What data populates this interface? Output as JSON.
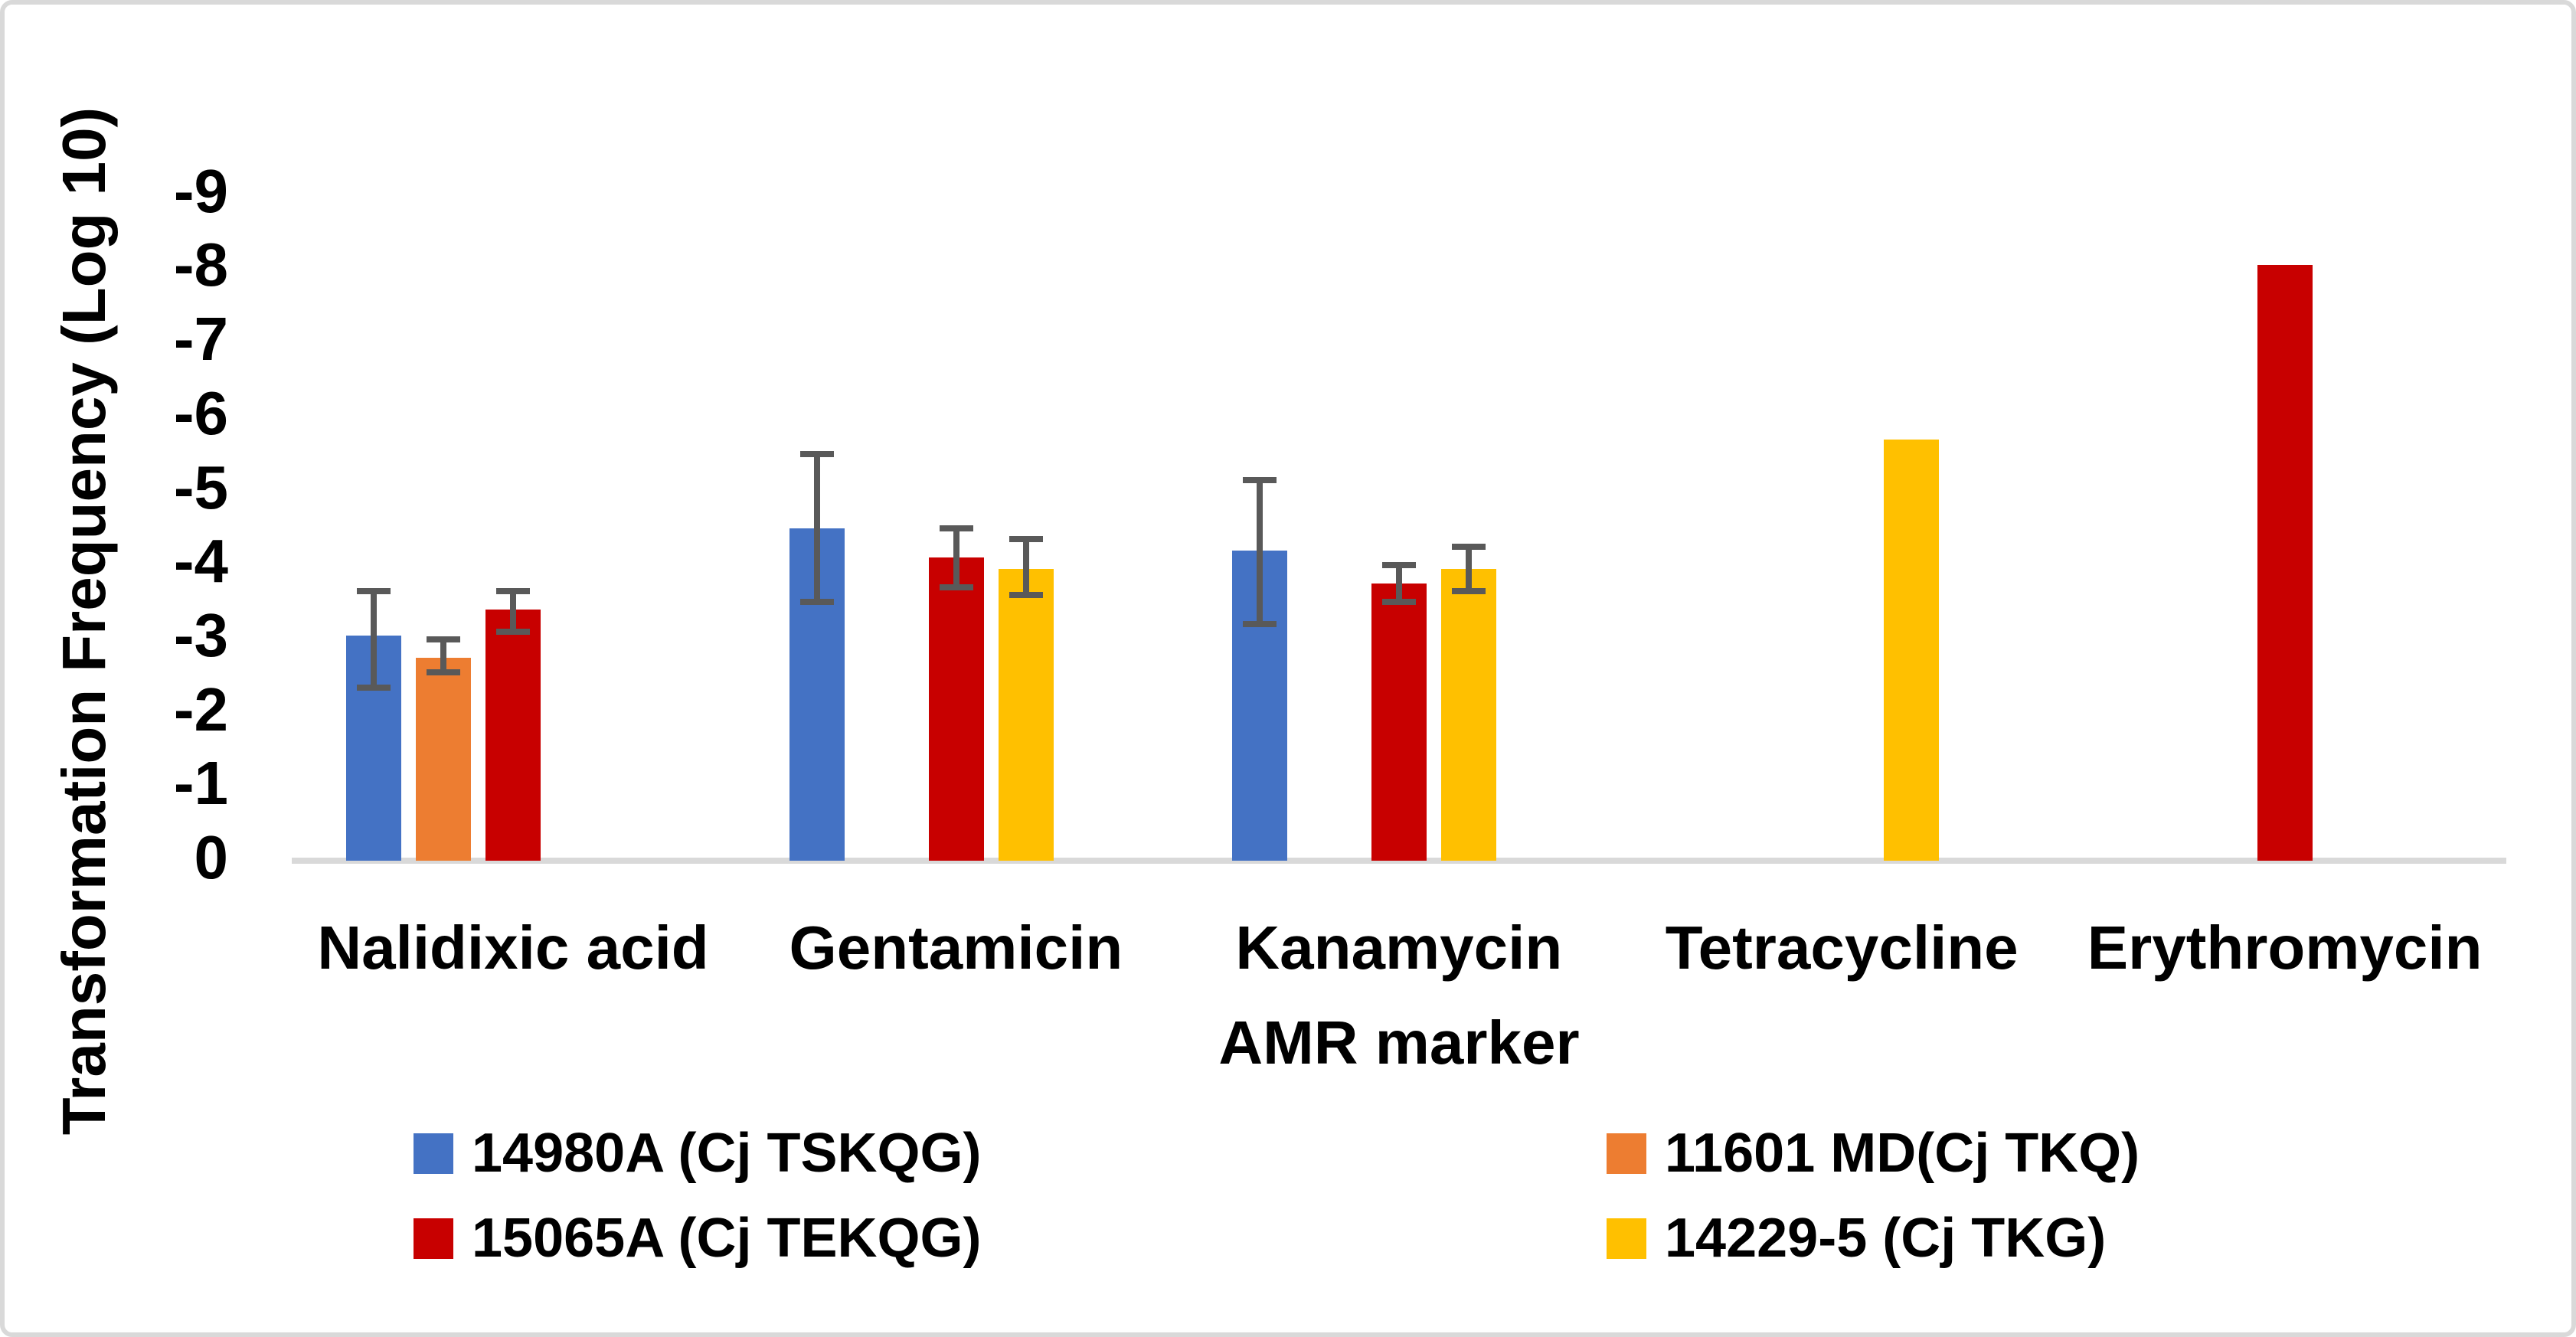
{
  "chart_data": {
    "type": "bar",
    "ylabel": "Transformation Frequency (Log 10)",
    "xlabel": "AMR marker",
    "yticks": [
      0,
      -1,
      -2,
      -3,
      -4,
      -5,
      -6,
      -7,
      -8,
      -9
    ],
    "ylim": [
      0,
      -9
    ],
    "y_axis_note": "reversed display: 0 at bottom, -9 at top; values are log10 transformation frequencies",
    "grid": false,
    "legend_position": "bottom",
    "categories": [
      "Nalidixic acid",
      "Gentamicin",
      "Kanamycin",
      "Tetracycline",
      "Erythromycin"
    ],
    "series": [
      {
        "name": "14980A (Cj TSKQG)",
        "color": "#4472C4",
        "values": [
          -3.0,
          -4.45,
          -4.15,
          null,
          null
        ],
        "error_hi": [
          -3.6,
          -5.45,
          -5.1,
          null,
          null
        ],
        "error_lo": [
          -2.3,
          -3.45,
          -3.15,
          null,
          null
        ]
      },
      {
        "name": "11601 MD(Cj TKQ)",
        "color": "#ED7D31",
        "values": [
          -2.7,
          null,
          null,
          null,
          null
        ],
        "error_hi": [
          -2.95,
          null,
          null,
          null,
          null
        ],
        "error_lo": [
          -2.5,
          null,
          null,
          null,
          null
        ]
      },
      {
        "name": "15065A (Cj TEKQG)",
        "color": "#C80000",
        "values": [
          -3.35,
          -4.05,
          -3.7,
          null,
          -8.0
        ],
        "error_hi": [
          -3.6,
          -4.45,
          -3.95,
          null,
          null
        ],
        "error_lo": [
          -3.05,
          -3.65,
          -3.45,
          null,
          null
        ]
      },
      {
        "name": "14229-5 (Cj TKG)",
        "color": "#FFC000",
        "values": [
          null,
          -3.9,
          -3.9,
          -5.65,
          null
        ],
        "error_hi": [
          null,
          -4.3,
          -4.2,
          null,
          null
        ],
        "error_lo": [
          null,
          -3.55,
          -3.6,
          null,
          null
        ]
      }
    ],
    "colors": {
      "error_bar": "#595959",
      "axis_line": "#D9D9D9",
      "border": "#D9D9D9",
      "text": "#000000"
    }
  }
}
